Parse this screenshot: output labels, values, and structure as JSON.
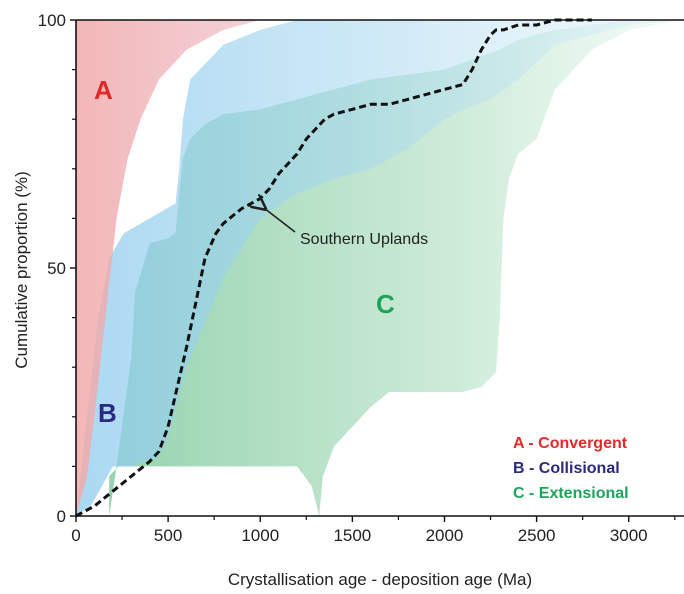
{
  "chart_data": {
    "type": "area",
    "title": "",
    "xlabel": "Crystallisation age - deposition age (Ma)",
    "ylabel": "Cumulative proportion (%)",
    "xlim": [
      0,
      3300
    ],
    "ylim": [
      0,
      100
    ],
    "x_ticks": [
      "0",
      "500",
      "1000",
      "1500",
      "2000",
      "2500",
      "3000"
    ],
    "y_ticks": [
      "0",
      "50",
      "100"
    ],
    "grid": false,
    "legend_position": "bottom-right",
    "legend": [
      {
        "label": "A - Convergent",
        "color": "#e02a2a"
      },
      {
        "label": "B - Collisional",
        "color": "#2b2a7e"
      },
      {
        "label": "C - Extensional",
        "color": "#1fa35a"
      }
    ],
    "fields": [
      {
        "label": "A",
        "color": "#e02a2a",
        "fill": "#f2b9b9",
        "lower": [
          [
            0,
            0
          ],
          [
            60,
            8
          ],
          [
            100,
            20
          ],
          [
            160,
            40
          ],
          [
            220,
            60
          ],
          [
            280,
            72
          ],
          [
            350,
            80
          ],
          [
            450,
            88
          ],
          [
            600,
            94
          ],
          [
            800,
            98
          ],
          [
            1000,
            100
          ],
          [
            2800,
            100
          ]
        ],
        "upper": [
          [
            0,
            100
          ],
          [
            2800,
            100
          ]
        ]
      },
      {
        "label": "B",
        "color": "#2b2a7e",
        "fill": "#a4d3ef",
        "lower": [
          [
            0,
            0
          ],
          [
            80,
            2
          ],
          [
            140,
            6
          ],
          [
            200,
            10
          ],
          [
            300,
            10
          ],
          [
            450,
            12
          ],
          [
            500,
            16
          ],
          [
            600,
            30
          ],
          [
            800,
            48
          ],
          [
            1000,
            60
          ],
          [
            1200,
            65
          ],
          [
            1400,
            68
          ],
          [
            1600,
            70
          ],
          [
            1800,
            74
          ],
          [
            2000,
            80
          ],
          [
            2100,
            82
          ],
          [
            2250,
            84
          ],
          [
            2400,
            88
          ],
          [
            2600,
            95
          ],
          [
            3000,
            99
          ],
          [
            3300,
            100
          ]
        ],
        "upper": [
          [
            0,
            0
          ],
          [
            60,
            20
          ],
          [
            120,
            40
          ],
          [
            180,
            52
          ],
          [
            260,
            57
          ],
          [
            400,
            60
          ],
          [
            540,
            63
          ],
          [
            560,
            70
          ],
          [
            580,
            80
          ],
          [
            620,
            88
          ],
          [
            800,
            95
          ],
          [
            1000,
            98
          ],
          [
            1200,
            100
          ],
          [
            3300,
            100
          ]
        ]
      },
      {
        "label": "C",
        "color": "#1fa35a",
        "fill": "#b4e2c6",
        "lower": [
          [
            180,
            0
          ],
          [
            180,
            8
          ],
          [
            230,
            10
          ],
          [
            300,
            10
          ],
          [
            500,
            10
          ],
          [
            700,
            10
          ],
          [
            900,
            10
          ],
          [
            1100,
            10
          ],
          [
            1200,
            10
          ],
          [
            1280,
            6
          ],
          [
            1320,
            0
          ],
          [
            1340,
            8
          ],
          [
            1400,
            14
          ],
          [
            1600,
            22
          ],
          [
            1700,
            25
          ],
          [
            1900,
            25
          ],
          [
            2000,
            25
          ],
          [
            2100,
            25
          ],
          [
            2200,
            26
          ],
          [
            2280,
            29
          ],
          [
            2300,
            40
          ],
          [
            2320,
            60
          ],
          [
            2350,
            68
          ],
          [
            2400,
            73
          ],
          [
            2500,
            76
          ],
          [
            2600,
            86
          ],
          [
            2800,
            94
          ],
          [
            3000,
            98
          ],
          [
            3300,
            100
          ]
        ],
        "upper": [
          [
            180,
            0
          ],
          [
            220,
            10
          ],
          [
            300,
            32
          ],
          [
            320,
            45
          ],
          [
            400,
            55
          ],
          [
            500,
            56
          ],
          [
            540,
            57
          ],
          [
            560,
            65
          ],
          [
            580,
            72
          ],
          [
            620,
            76
          ],
          [
            700,
            79
          ],
          [
            800,
            81
          ],
          [
            1000,
            82
          ],
          [
            1200,
            84
          ],
          [
            1400,
            86
          ],
          [
            1600,
            88
          ],
          [
            1800,
            89
          ],
          [
            2000,
            90
          ],
          [
            2150,
            92
          ],
          [
            2300,
            94
          ],
          [
            2400,
            96
          ],
          [
            2600,
            98
          ],
          [
            3000,
            100
          ],
          [
            3300,
            100
          ]
        ]
      }
    ],
    "series": [
      {
        "name": "Southern Uplands",
        "style": "dashed",
        "color": "#111111",
        "x": [
          0,
          100,
          200,
          300,
          400,
          450,
          500,
          550,
          600,
          650,
          700,
          760,
          800,
          900,
          1000,
          1050,
          1100,
          1200,
          1250,
          1300,
          1350,
          1400,
          1500,
          1600,
          1700,
          1800,
          1900,
          2000,
          2100,
          2150,
          2200,
          2250,
          2280,
          2320,
          2400,
          2500,
          2600,
          2700,
          2800
        ],
        "y": [
          0,
          2,
          5,
          8,
          11,
          13,
          18,
          26,
          34,
          43,
          52,
          57,
          59,
          62,
          64,
          66,
          69,
          73,
          76,
          78,
          80,
          81,
          82,
          83,
          83,
          84,
          85,
          86,
          87,
          90,
          94,
          97,
          98,
          98,
          99,
          99,
          100,
          100,
          100
        ]
      }
    ],
    "annotations": [
      {
        "text": "Southern Uplands",
        "points_to": [
          1000,
          62
        ]
      }
    ]
  }
}
